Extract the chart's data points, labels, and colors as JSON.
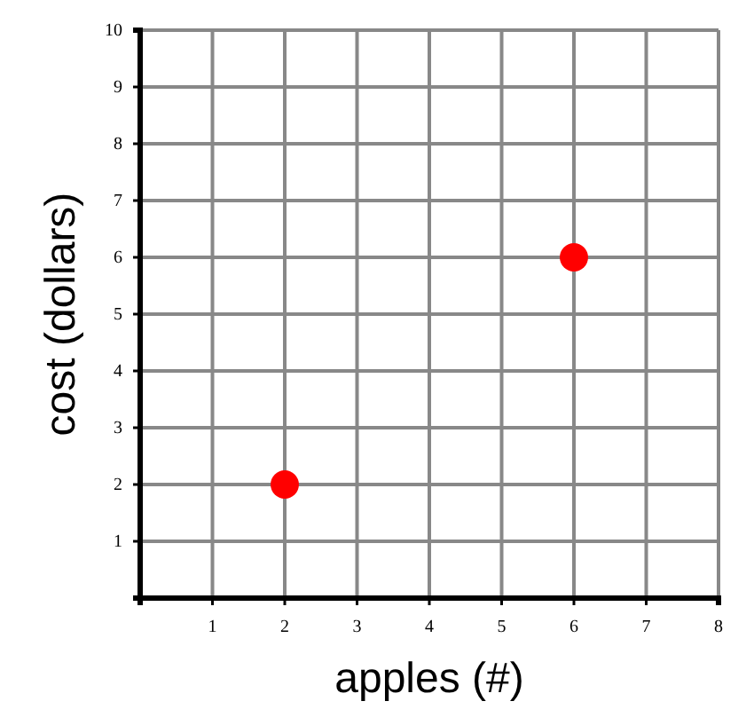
{
  "chart_data": {
    "type": "scatter",
    "xlabel": "apples (#)",
    "ylabel": "cost (dollars)",
    "x": [
      2,
      6
    ],
    "series": [
      {
        "color": "#ff0000",
        "values": [
          2,
          6
        ]
      }
    ],
    "xlim": [
      0,
      8
    ],
    "ylim": [
      0,
      10
    ],
    "xticks": [
      1,
      2,
      3,
      4,
      5,
      6,
      7,
      8
    ],
    "yticks": [
      1,
      2,
      3,
      4,
      5,
      6,
      7,
      8,
      9,
      10
    ],
    "grid": true,
    "marker": "circle"
  }
}
